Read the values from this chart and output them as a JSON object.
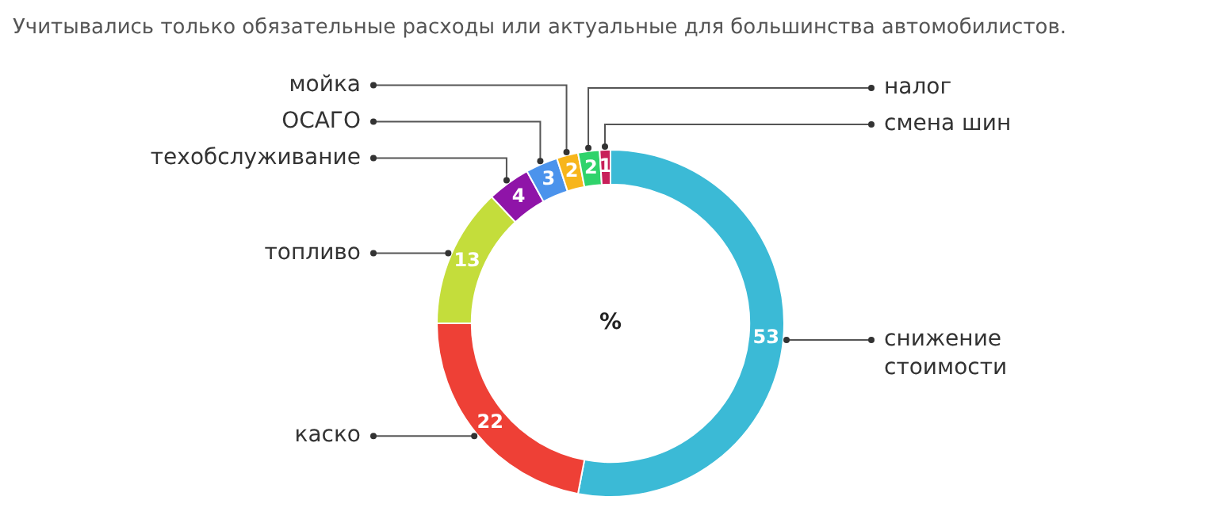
{
  "chart_data": {
    "type": "donut",
    "title": "Учитывались только обязательные расходы или актуальные для большинства автомобилистов.",
    "categories": [
      "снижение стоимости",
      "каско",
      "топливо",
      "техобслуживание",
      "ОСАГО",
      "мойка",
      "налог",
      "смена шин"
    ],
    "values": [
      53,
      22,
      13,
      4,
      3,
      2,
      2,
      1
    ],
    "colors": [
      "#3bbad6",
      "#ee4036",
      "#c4dd3b",
      "#8f14a8",
      "#4b93ec",
      "#f7b51b",
      "#2fd36b",
      "#c8205a"
    ],
    "data_labels": true,
    "annotations": [
      "%"
    ],
    "legend": false
  }
}
